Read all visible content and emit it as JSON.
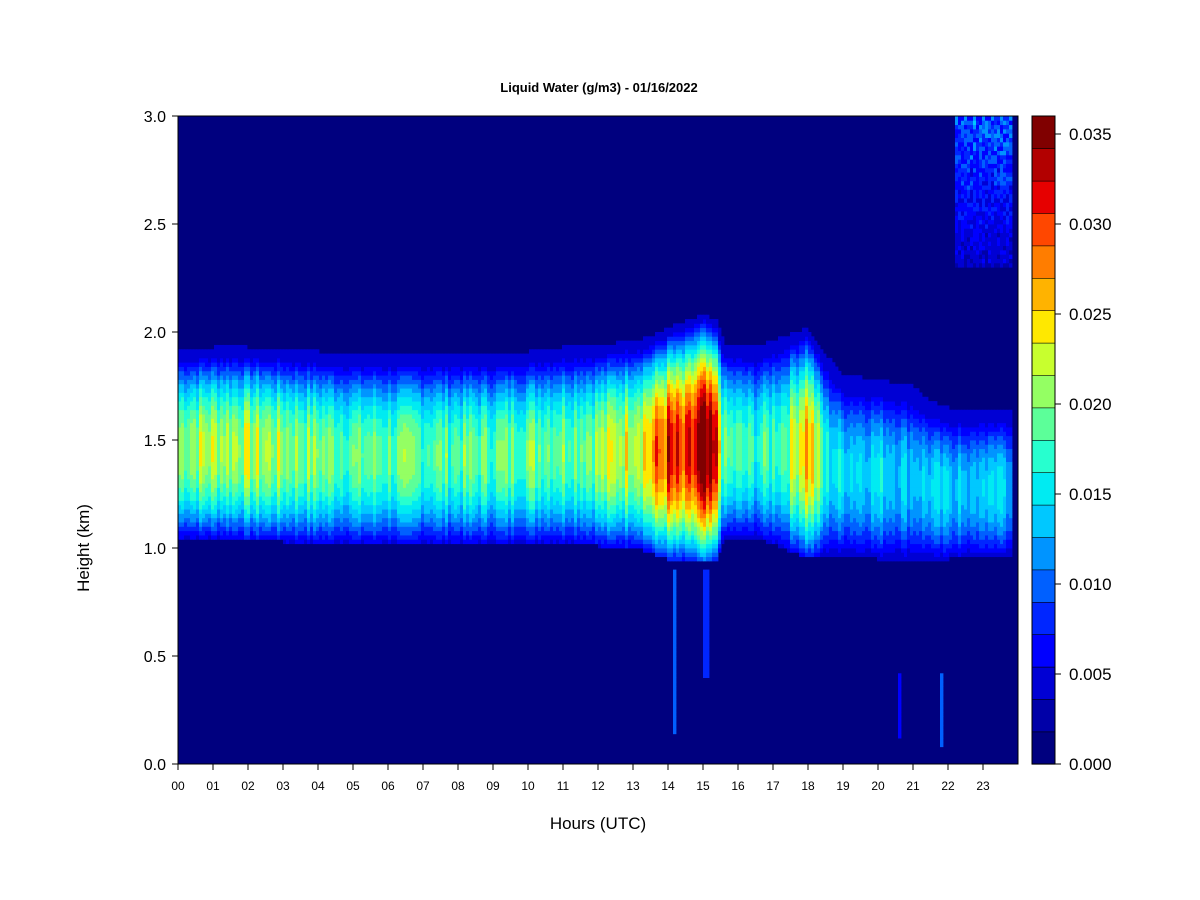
{
  "chart_data": {
    "type": "heatmap",
    "title": "Liquid Water (g/m3) - 01/16/2022",
    "xlabel": "Hours (UTC)",
    "ylabel": "Height (km)",
    "x_range": [
      0,
      24
    ],
    "y_range": [
      0.0,
      3.0
    ],
    "x_ticks": [
      "00",
      "01",
      "02",
      "03",
      "04",
      "05",
      "06",
      "07",
      "08",
      "09",
      "10",
      "11",
      "12",
      "13",
      "14",
      "15",
      "16",
      "17",
      "18",
      "19",
      "20",
      "21",
      "22",
      "23"
    ],
    "y_ticks": [
      "0.0",
      "0.5",
      "1.0",
      "1.5",
      "2.0",
      "2.5",
      "3.0"
    ],
    "colorbar": {
      "range": [
        0.0,
        0.036
      ],
      "tick_values": [
        0.0,
        0.005,
        0.01,
        0.015,
        0.02,
        0.025,
        0.03,
        0.035
      ],
      "tick_labels": [
        "0.000",
        "0.005",
        "0.010",
        "0.015",
        "0.020",
        "0.025",
        "0.030",
        "0.035"
      ],
      "levels": 18,
      "colors": [
        "#00007f",
        "#0000a8",
        "#0000d4",
        "#0000ff",
        "#0026ff",
        "#0060ff",
        "#0094ff",
        "#00c8ff",
        "#00ebf2",
        "#27ffcf",
        "#5cff99",
        "#94ff63",
        "#c8ff2e",
        "#ffe800",
        "#ffb300",
        "#ff7d00",
        "#ff4700",
        "#e60000",
        "#b20000",
        "#800000"
      ]
    },
    "cloud_layer": [
      {
        "t": 0.0,
        "base": 1.05,
        "top": 1.92,
        "peak": 0.021
      },
      {
        "t": 1.0,
        "base": 1.05,
        "top": 1.93,
        "peak": 0.022
      },
      {
        "t": 2.0,
        "base": 1.04,
        "top": 1.93,
        "peak": 0.022
      },
      {
        "t": 3.0,
        "base": 1.03,
        "top": 1.92,
        "peak": 0.021
      },
      {
        "t": 4.0,
        "base": 1.02,
        "top": 1.91,
        "peak": 0.02
      },
      {
        "t": 5.0,
        "base": 1.02,
        "top": 1.9,
        "peak": 0.019
      },
      {
        "t": 6.0,
        "base": 1.02,
        "top": 1.9,
        "peak": 0.019
      },
      {
        "t": 7.0,
        "base": 1.02,
        "top": 1.9,
        "peak": 0.019
      },
      {
        "t": 8.0,
        "base": 1.02,
        "top": 1.9,
        "peak": 0.019
      },
      {
        "t": 9.0,
        "base": 1.02,
        "top": 1.9,
        "peak": 0.019
      },
      {
        "t": 10.0,
        "base": 1.02,
        "top": 1.91,
        "peak": 0.02
      },
      {
        "t": 11.0,
        "base": 1.02,
        "top": 1.93,
        "peak": 0.02
      },
      {
        "t": 12.0,
        "base": 1.01,
        "top": 1.94,
        "peak": 0.021
      },
      {
        "t": 13.0,
        "base": 1.0,
        "top": 1.96,
        "peak": 0.024
      },
      {
        "t": 13.5,
        "base": 0.98,
        "top": 1.98,
        "peak": 0.026
      },
      {
        "t": 14.0,
        "base": 0.95,
        "top": 2.02,
        "peak": 0.031
      },
      {
        "t": 14.5,
        "base": 0.95,
        "top": 2.05,
        "peak": 0.028
      },
      {
        "t": 15.0,
        "base": 0.93,
        "top": 2.08,
        "peak": 0.035
      },
      {
        "t": 15.4,
        "base": 0.95,
        "top": 2.05,
        "peak": 0.03
      },
      {
        "t": 15.6,
        "base": 1.05,
        "top": 1.95,
        "peak": 0.018
      },
      {
        "t": 16.5,
        "base": 1.05,
        "top": 1.93,
        "peak": 0.017
      },
      {
        "t": 17.3,
        "base": 1.0,
        "top": 1.98,
        "peak": 0.019
      },
      {
        "t": 18.0,
        "base": 0.95,
        "top": 2.02,
        "peak": 0.028
      },
      {
        "t": 18.5,
        "base": 0.97,
        "top": 1.9,
        "peak": 0.016
      },
      {
        "t": 19.0,
        "base": 0.97,
        "top": 1.8,
        "peak": 0.015
      },
      {
        "t": 20.0,
        "base": 0.95,
        "top": 1.78,
        "peak": 0.015
      },
      {
        "t": 21.0,
        "base": 0.95,
        "top": 1.75,
        "peak": 0.014
      },
      {
        "t": 21.5,
        "base": 0.95,
        "top": 1.68,
        "peak": 0.014
      },
      {
        "t": 22.0,
        "base": 0.95,
        "top": 1.65,
        "peak": 0.014
      },
      {
        "t": 23.0,
        "base": 0.96,
        "top": 1.65,
        "peak": 0.014
      },
      {
        "t": 23.8,
        "base": 0.96,
        "top": 1.65,
        "peak": 0.014
      }
    ],
    "high_cloud": {
      "t_start": 22.2,
      "t_end": 23.8,
      "base": 2.3,
      "top": 3.0,
      "peak": 0.011
    },
    "sparse_features": [
      {
        "t": 14.2,
        "base": 0.15,
        "top": 0.9,
        "value": 0.01
      },
      {
        "t": 15.1,
        "base": 0.4,
        "top": 0.9,
        "value": 0.008
      },
      {
        "t": 20.6,
        "base": 0.12,
        "top": 0.42,
        "value": 0.006
      },
      {
        "t": 21.8,
        "base": 0.08,
        "top": 0.42,
        "value": 0.01
      }
    ]
  }
}
